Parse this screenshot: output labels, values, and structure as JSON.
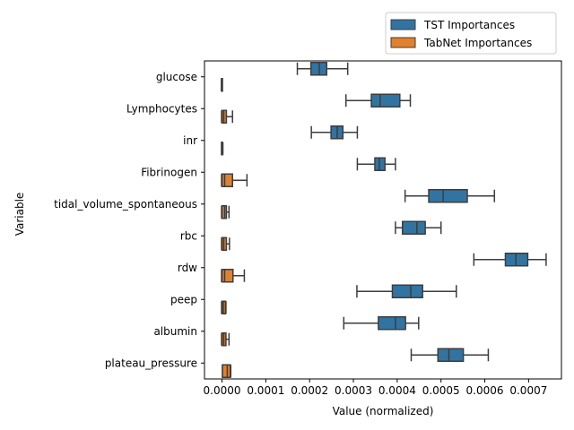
{
  "chart_data": {
    "type": "boxplot",
    "orientation": "horizontal",
    "xlabel": "Value (normalized)",
    "ylabel": "Variable",
    "xlim": [
      -4e-05,
      0.000775
    ],
    "xticks": [
      0.0,
      0.0001,
      0.0002,
      0.0003,
      0.0004,
      0.0005,
      0.0006,
      0.0007
    ],
    "xtick_labels": [
      "0.0000",
      "0.0001",
      "0.0002",
      "0.0003",
      "0.0004",
      "0.0005",
      "0.0006",
      "0.0007"
    ],
    "legend_position": "top-right",
    "grid": false,
    "categories": [
      "glucose",
      "Lymphocytes",
      "inr",
      "Fibrinogen",
      "tidal_volume_spontaneous",
      "rbc",
      "rdw",
      "peep",
      "albumin",
      "plateau_pressure"
    ],
    "series": [
      {
        "name": "TST Importances",
        "color": "#3274a1",
        "boxes": [
          {
            "whisker_low": 0.000172,
            "q1": 0.000203,
            "median": 0.000222,
            "q3": 0.000239,
            "whisker_high": 0.000287
          },
          {
            "whisker_low": 0.000283,
            "q1": 0.000341,
            "median": 0.000361,
            "q3": 0.000406,
            "whisker_high": 0.00043
          },
          {
            "whisker_low": 0.000204,
            "q1": 0.000249,
            "median": 0.000263,
            "q3": 0.000276,
            "whisker_high": 0.000309
          },
          {
            "whisker_low": 0.000309,
            "q1": 0.000349,
            "median": 0.000359,
            "q3": 0.000372,
            "whisker_high": 0.000396
          },
          {
            "whisker_low": 0.000418,
            "q1": 0.000472,
            "median": 0.000505,
            "q3": 0.00056,
            "whisker_high": 0.000622
          },
          {
            "whisker_low": 0.000396,
            "q1": 0.000412,
            "median": 0.000445,
            "q3": 0.000464,
            "whisker_high": 0.0005
          },
          {
            "whisker_low": 0.000575,
            "q1": 0.000647,
            "median": 0.000671,
            "q3": 0.000698,
            "whisker_high": 0.00074
          },
          {
            "whisker_low": 0.000308,
            "q1": 0.000389,
            "median": 0.000431,
            "q3": 0.000458,
            "whisker_high": 0.000535
          },
          {
            "whisker_low": 0.000278,
            "q1": 0.000357,
            "median": 0.000396,
            "q3": 0.000419,
            "whisker_high": 0.000449
          },
          {
            "whisker_low": 0.000432,
            "q1": 0.000493,
            "median": 0.000518,
            "q3": 0.000551,
            "whisker_high": 0.000608
          }
        ]
      },
      {
        "name": "TabNet Importances",
        "color": "#e1812c",
        "boxes": [
          {
            "whisker_low": -1e-06,
            "q1": -1e-06,
            "median": -1e-06,
            "q3": -1e-06,
            "whisker_high": -1e-06
          },
          {
            "whisker_low": -1e-06,
            "q1": 0.0,
            "median": 4e-06,
            "q3": 1e-05,
            "whisker_high": 2.4e-05
          },
          {
            "whisker_low": -1e-06,
            "q1": -1e-06,
            "median": 1e-06,
            "q3": 1e-06,
            "whisker_high": 2e-06
          },
          {
            "whisker_low": -1e-06,
            "q1": 0.0,
            "median": 6e-06,
            "q3": 2.4e-05,
            "whisker_high": 5.7e-05
          },
          {
            "whisker_low": -1e-06,
            "q1": 0.0,
            "median": 6e-06,
            "q3": 1e-05,
            "whisker_high": 1.6e-05
          },
          {
            "whisker_low": -1e-06,
            "q1": 0.0,
            "median": 4e-06,
            "q3": 1e-05,
            "whisker_high": 1.7e-05
          },
          {
            "whisker_low": -1e-06,
            "q1": 0.0,
            "median": 6e-06,
            "q3": 2.5e-05,
            "whisker_high": 5.1e-05
          },
          {
            "whisker_low": -1e-06,
            "q1": 0.0,
            "median": 3e-06,
            "q3": 8e-06,
            "whisker_high": 9e-06
          },
          {
            "whisker_low": -1e-06,
            "q1": 0.0,
            "median": 4e-06,
            "q3": 9e-06,
            "whisker_high": 1.6e-05
          },
          {
            "whisker_low": 1e-06,
            "q1": 1e-06,
            "median": 1.2e-05,
            "q3": 1.9e-05,
            "whisker_high": 2e-05
          }
        ]
      }
    ]
  }
}
